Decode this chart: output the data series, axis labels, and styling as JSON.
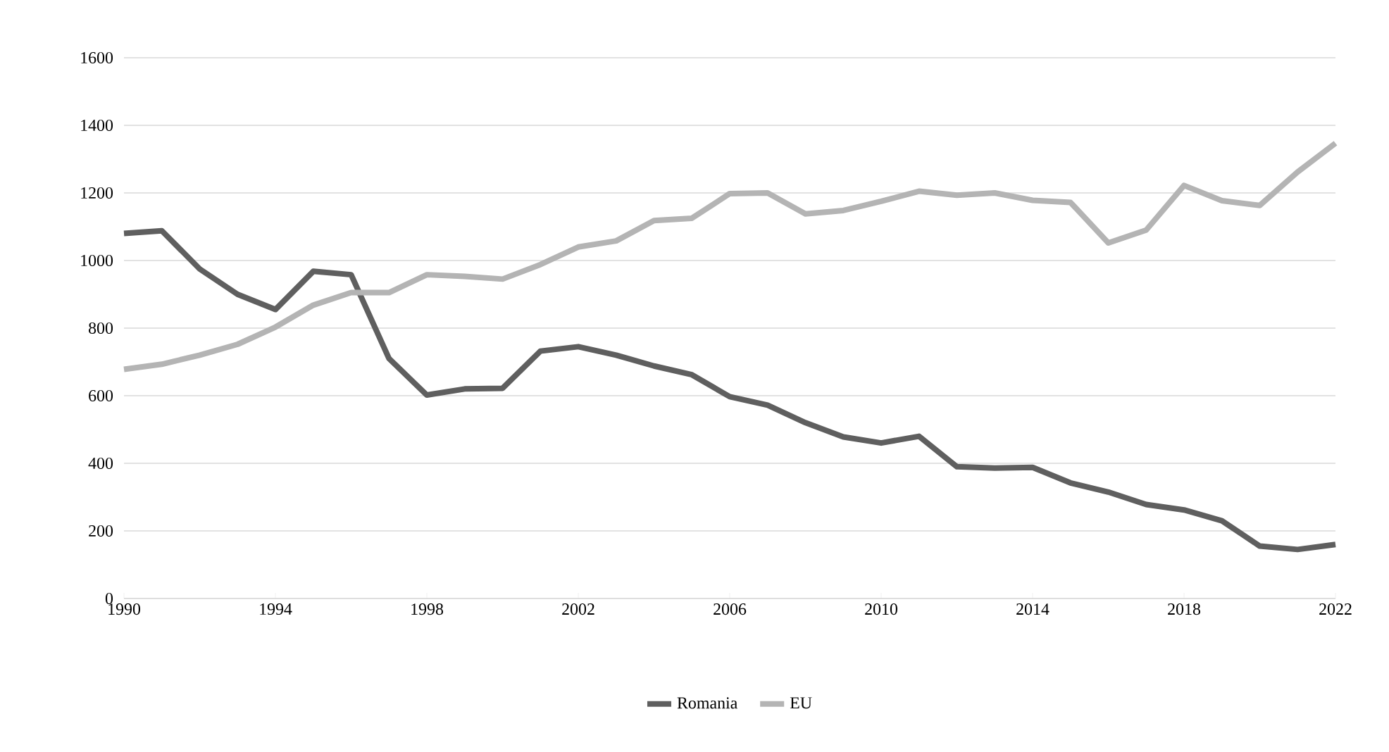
{
  "chart_data": {
    "type": "line",
    "x": [
      1990,
      1991,
      1992,
      1993,
      1994,
      1995,
      1996,
      1997,
      1998,
      1999,
      2000,
      2001,
      2002,
      2003,
      2004,
      2005,
      2006,
      2007,
      2008,
      2009,
      2010,
      2011,
      2012,
      2013,
      2014,
      2015,
      2016,
      2017,
      2018,
      2019,
      2020,
      2021,
      2022
    ],
    "series": [
      {
        "name": "Romania",
        "color": "#5f5f5f",
        "values": [
          1080,
          1088,
          975,
          900,
          855,
          968,
          958,
          710,
          602,
          620,
          622,
          732,
          745,
          720,
          688,
          662,
          597,
          572,
          520,
          478,
          460,
          480,
          390,
          386,
          388,
          342,
          315,
          278,
          262,
          230,
          155,
          145,
          160
        ]
      },
      {
        "name": "EU",
        "color": "#b4b4b4",
        "values": [
          678,
          693,
          720,
          752,
          803,
          868,
          905,
          905,
          958,
          953,
          945,
          988,
          1040,
          1058,
          1118,
          1125,
          1198,
          1200,
          1138,
          1148,
          1175,
          1205,
          1193,
          1200,
          1178,
          1172,
          1052,
          1090,
          1222,
          1177,
          1163,
          1262,
          1347
        ]
      }
    ],
    "xlim": [
      1990,
      2022
    ],
    "xticks": [
      1990,
      1994,
      1998,
      2002,
      2006,
      2010,
      2014,
      2018,
      2022
    ],
    "ylim": [
      0,
      1600
    ],
    "yticks": [
      0,
      200,
      400,
      600,
      800,
      1000,
      1200,
      1400,
      1600
    ],
    "grid": "y",
    "legend": "bottom",
    "marker": "none",
    "line_style": "solid"
  }
}
